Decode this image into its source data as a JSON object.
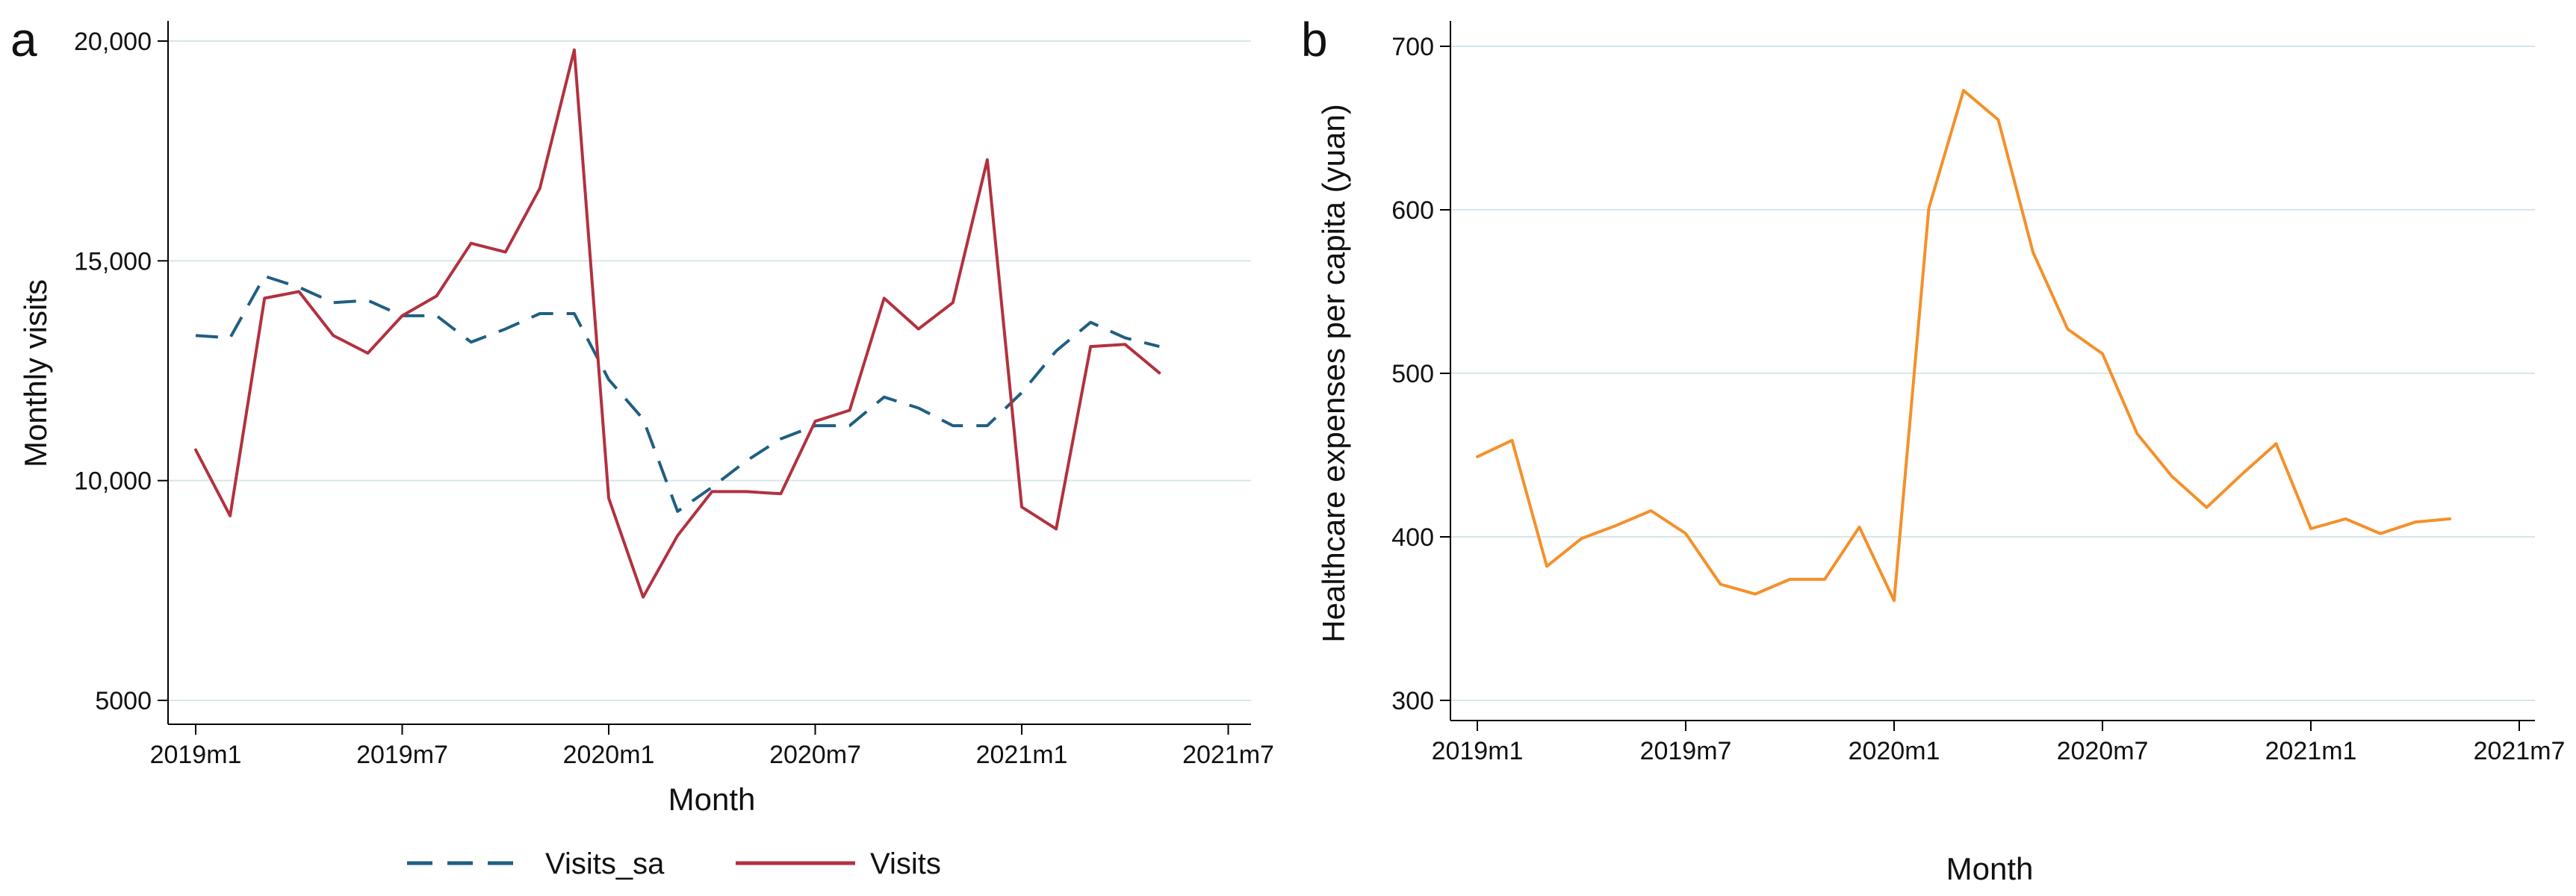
{
  "chart_data": [
    {
      "panel": "a",
      "type": "line",
      "title": "",
      "xlabel": "Month",
      "ylabel": "Monthly visits",
      "x_categories": [
        "2019m1",
        "2019m2",
        "2019m3",
        "2019m4",
        "2019m5",
        "2019m6",
        "2019m7",
        "2019m8",
        "2019m9",
        "2019m10",
        "2019m11",
        "2019m12",
        "2020m1",
        "2020m2",
        "2020m3",
        "2020m4",
        "2020m5",
        "2020m6",
        "2020m7",
        "2020m8",
        "2020m9",
        "2020m10",
        "2020m11",
        "2020m12",
        "2021m1",
        "2021m2",
        "2021m3",
        "2021m4",
        "2021m5"
      ],
      "x_tick_labels": [
        "2019m1",
        "2019m7",
        "2020m1",
        "2020m7",
        "2021m1",
        "2021m7"
      ],
      "x_tick_index": [
        0,
        6,
        12,
        18,
        24,
        30
      ],
      "xlim_index": [
        0,
        30
      ],
      "y_ticks": [
        5000,
        10000,
        15000,
        20000
      ],
      "y_tick_labels": [
        "5000",
        "10,000",
        "15,000",
        "20,000"
      ],
      "ylim": [
        5000,
        20000
      ],
      "grid": true,
      "legend_position": "bottom",
      "series": [
        {
          "name": "Visits_sa",
          "color": "#1f5f82",
          "style": "dashed",
          "values": [
            13300,
            13250,
            14650,
            14400,
            14050,
            14100,
            13750,
            13750,
            13150,
            13450,
            13800,
            13800,
            12300,
            11400,
            9300,
            9850,
            10450,
            10950,
            11250,
            11250,
            11900,
            11650,
            11250,
            11250,
            12000,
            12950,
            13600,
            13250,
            13050
          ]
        },
        {
          "name": "Visits",
          "color": "#b2313f",
          "style": "solid",
          "values": [
            10700,
            9200,
            14150,
            14300,
            13300,
            12900,
            13750,
            14200,
            15400,
            15200,
            16650,
            19800,
            9600,
            7350,
            8750,
            9750,
            9750,
            9700,
            11350,
            11600,
            14150,
            13450,
            14050,
            17300,
            9400,
            8900,
            13050,
            13100,
            12450
          ]
        }
      ]
    },
    {
      "panel": "b",
      "type": "line",
      "title": "",
      "xlabel": "Month",
      "ylabel": "Healthcare expenses per capita (yuan)",
      "x_categories": [
        "2019m1",
        "2019m2",
        "2019m3",
        "2019m4",
        "2019m5",
        "2019m6",
        "2019m7",
        "2019m8",
        "2019m9",
        "2019m10",
        "2019m11",
        "2019m12",
        "2020m1",
        "2020m2",
        "2020m3",
        "2020m4",
        "2020m5",
        "2020m6",
        "2020m7",
        "2020m8",
        "2020m9",
        "2020m10",
        "2020m11",
        "2020m12",
        "2021m1",
        "2021m2",
        "2021m3",
        "2021m4",
        "2021m5"
      ],
      "x_tick_labels": [
        "2019m1",
        "2019m7",
        "2020m1",
        "2020m7",
        "2021m1",
        "2021m7"
      ],
      "x_tick_index": [
        0,
        6,
        12,
        18,
        24,
        30
      ],
      "xlim_index": [
        0,
        30
      ],
      "y_ticks": [
        300,
        400,
        500,
        600,
        700
      ],
      "y_tick_labels": [
        "300",
        "400",
        "500",
        "600",
        "700"
      ],
      "ylim": [
        300,
        700
      ],
      "grid": true,
      "series": [
        {
          "name": "Healthcare expenses per capita",
          "color": "#f4902a",
          "style": "solid",
          "values": [
            449,
            459,
            382,
            399,
            407,
            416,
            402,
            371,
            365,
            374,
            374,
            406,
            361,
            601,
            673,
            655,
            574,
            527,
            512,
            463,
            437,
            418,
            438,
            457,
            405,
            411,
            402,
            409,
            411
          ]
        }
      ]
    }
  ],
  "panels": {
    "a": {
      "label": "a"
    },
    "b": {
      "label": "b"
    }
  }
}
